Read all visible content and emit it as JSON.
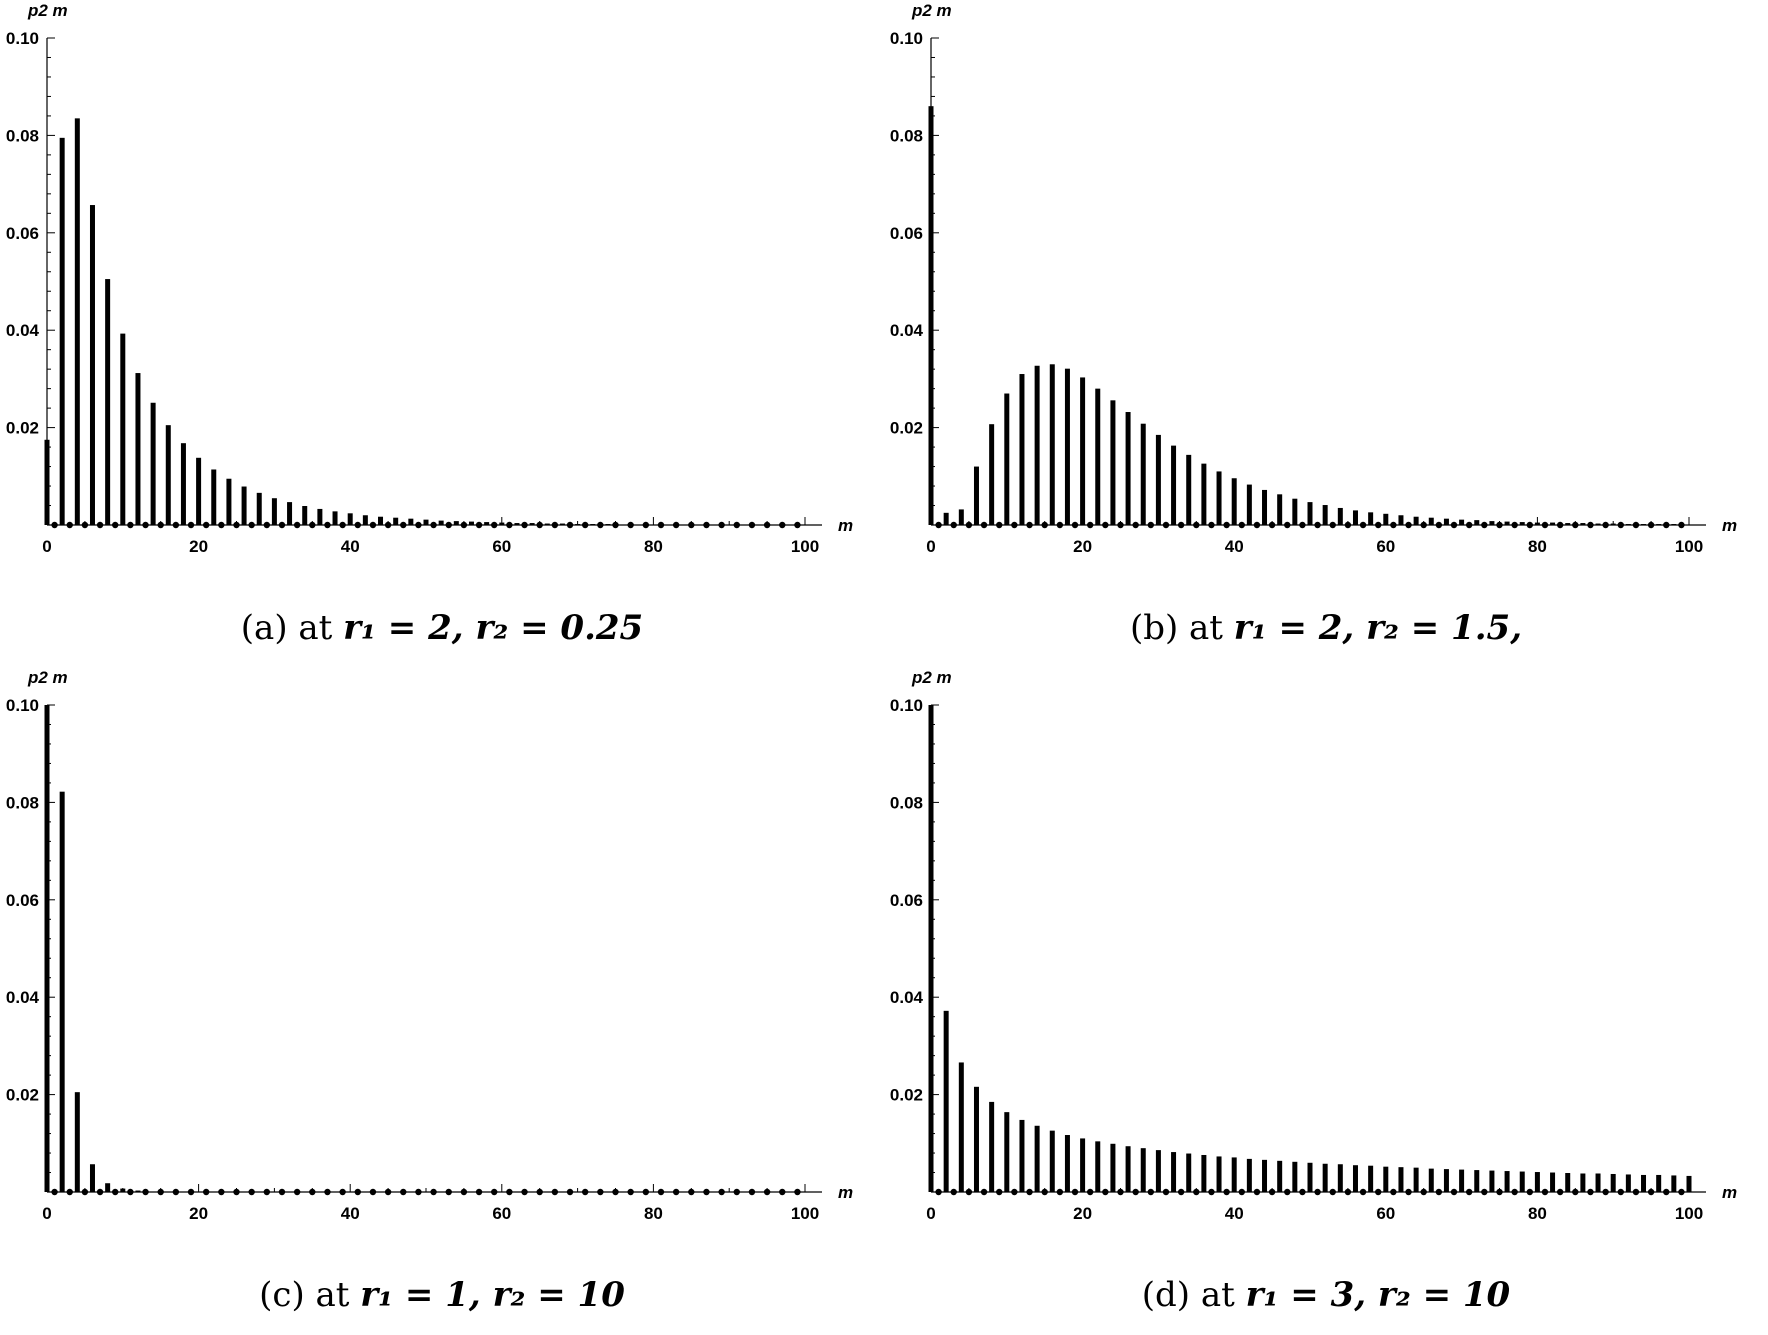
{
  "chart_data": [
    {
      "type": "bar",
      "ylabel": "p2 m",
      "xlabel": "m",
      "xlim": [
        0,
        100
      ],
      "ylim": [
        0,
        0.1
      ],
      "xticks": [
        "0",
        "20",
        "40",
        "60",
        "80",
        "100"
      ],
      "yticks": [
        "0.02",
        "0.04",
        "0.06",
        "0.08",
        "0.10"
      ],
      "caption_label": "(a) at",
      "caption_math": "r₁ = 2, r₂ = 0.25",
      "x": [
        0,
        2,
        4,
        6,
        8,
        10,
        12,
        14,
        16,
        18,
        20,
        22,
        24,
        26,
        28,
        30,
        32,
        34,
        36,
        38,
        40,
        42,
        44,
        46,
        48,
        50,
        52,
        54,
        56,
        58,
        60,
        62,
        64,
        66,
        68,
        70,
        72,
        74,
        76,
        78,
        80,
        82,
        84,
        86,
        88,
        90,
        92,
        94,
        96,
        98,
        100
      ],
      "values": [
        0.0175,
        0.0795,
        0.0835,
        0.0657,
        0.0505,
        0.0393,
        0.0312,
        0.0251,
        0.0205,
        0.0168,
        0.0138,
        0.0114,
        0.0095,
        0.0079,
        0.0066,
        0.0055,
        0.0047,
        0.0039,
        0.0033,
        0.0028,
        0.0024,
        0.002,
        0.0017,
        0.0015,
        0.0013,
        0.0011,
        0.0009,
        0.0008,
        0.0007,
        0.0006,
        0.0005,
        0.0004,
        0.0004,
        0.0003,
        0.0003,
        0.0002,
        0.0002,
        0.0002,
        0.0001,
        0.0001,
        0.0001,
        0.0001,
        0.0001,
        0.0001,
        0.0001,
        0,
        0,
        0,
        0,
        0,
        0
      ]
    },
    {
      "type": "bar",
      "ylabel": "p2 m",
      "xlabel": "m",
      "xlim": [
        0,
        100
      ],
      "ylim": [
        0,
        0.1
      ],
      "xticks": [
        "0",
        "20",
        "40",
        "60",
        "80",
        "100"
      ],
      "yticks": [
        "0.02",
        "0.04",
        "0.06",
        "0.08",
        "0.10"
      ],
      "caption_label": "(b) at",
      "caption_math": "r₁ = 2, r₂ = 1.5,",
      "x": [
        0,
        2,
        4,
        6,
        8,
        10,
        12,
        14,
        16,
        18,
        20,
        22,
        24,
        26,
        28,
        30,
        32,
        34,
        36,
        38,
        40,
        42,
        44,
        46,
        48,
        50,
        52,
        54,
        56,
        58,
        60,
        62,
        64,
        66,
        68,
        70,
        72,
        74,
        76,
        78,
        80,
        82,
        84,
        86,
        88,
        90,
        92,
        94,
        96,
        98,
        100
      ],
      "values": [
        0.086,
        0.0025,
        0.0032,
        0.012,
        0.0207,
        0.027,
        0.031,
        0.0327,
        0.033,
        0.0321,
        0.0303,
        0.028,
        0.0256,
        0.0232,
        0.0208,
        0.0185,
        0.0163,
        0.0144,
        0.0126,
        0.011,
        0.0096,
        0.0083,
        0.0072,
        0.0063,
        0.0054,
        0.0047,
        0.0041,
        0.0035,
        0.003,
        0.0026,
        0.0023,
        0.002,
        0.0017,
        0.0015,
        0.0013,
        0.0011,
        0.001,
        0.0008,
        0.0007,
        0.0006,
        0.0005,
        0.0005,
        0.0004,
        0.0004,
        0.0003,
        0.0003,
        0.0002,
        0.0002,
        0.0002,
        0.0002,
        0.0001
      ]
    },
    {
      "type": "bar",
      "ylabel": "p2 m",
      "xlabel": "m",
      "xlim": [
        0,
        100
      ],
      "ylim": [
        0,
        0.1
      ],
      "xticks": [
        "0",
        "20",
        "40",
        "60",
        "80",
        "100"
      ],
      "yticks": [
        "0.02",
        "0.04",
        "0.06",
        "0.08",
        "0.10"
      ],
      "caption_label": "(c) at",
      "caption_math": "r₁ = 1, r₂ = 10",
      "x": [
        0,
        2,
        4,
        6,
        8,
        10,
        12,
        14,
        16,
        18,
        20,
        22,
        24,
        26,
        28,
        30,
        32,
        34,
        36,
        38,
        40,
        42,
        44,
        46,
        48,
        50,
        52,
        54,
        56,
        58,
        60,
        62,
        64,
        66,
        68,
        70,
        72,
        74,
        76,
        78,
        80,
        82,
        84,
        86,
        88,
        90,
        92,
        94,
        96,
        98,
        100
      ],
      "values": [
        0.1,
        0.0822,
        0.0205,
        0.0057,
        0.0018,
        0.0007,
        0.0003,
        0.0001,
        0,
        0,
        0,
        0,
        0,
        0,
        0,
        0,
        0,
        0,
        0,
        0,
        0,
        0,
        0,
        0,
        0,
        0,
        0,
        0,
        0,
        0,
        0,
        0,
        0,
        0,
        0,
        0,
        0,
        0,
        0,
        0,
        0,
        0,
        0,
        0,
        0,
        0,
        0,
        0,
        0,
        0,
        0
      ]
    },
    {
      "type": "bar",
      "ylabel": "p2 m",
      "xlabel": "m",
      "xlim": [
        0,
        100
      ],
      "ylim": [
        0,
        0.1
      ],
      "xticks": [
        "0",
        "20",
        "40",
        "60",
        "80",
        "100"
      ],
      "yticks": [
        "0.02",
        "0.04",
        "0.06",
        "0.08",
        "0.10"
      ],
      "caption_label": "(d) at",
      "caption_math": "r₁ = 3, r₂ = 10",
      "x": [
        0,
        2,
        4,
        6,
        8,
        10,
        12,
        14,
        16,
        18,
        20,
        22,
        24,
        26,
        28,
        30,
        32,
        34,
        36,
        38,
        40,
        42,
        44,
        46,
        48,
        50,
        52,
        54,
        56,
        58,
        60,
        62,
        64,
        66,
        68,
        70,
        72,
        74,
        76,
        78,
        80,
        82,
        84,
        86,
        88,
        90,
        92,
        94,
        96,
        98,
        100
      ],
      "values": [
        0.1,
        0.0372,
        0.0266,
        0.0216,
        0.0185,
        0.0164,
        0.0148,
        0.0136,
        0.0126,
        0.0117,
        0.011,
        0.0104,
        0.0099,
        0.0094,
        0.009,
        0.0086,
        0.0082,
        0.0079,
        0.0076,
        0.0073,
        0.0071,
        0.0068,
        0.0066,
        0.0064,
        0.0062,
        0.006,
        0.0058,
        0.0057,
        0.0055,
        0.0054,
        0.0052,
        0.0051,
        0.005,
        0.0048,
        0.0047,
        0.0046,
        0.0045,
        0.0044,
        0.0043,
        0.0042,
        0.0041,
        0.004,
        0.0039,
        0.0038,
        0.0038,
        0.0037,
        0.0036,
        0.0035,
        0.0035,
        0.0034,
        0.0033
      ]
    }
  ]
}
